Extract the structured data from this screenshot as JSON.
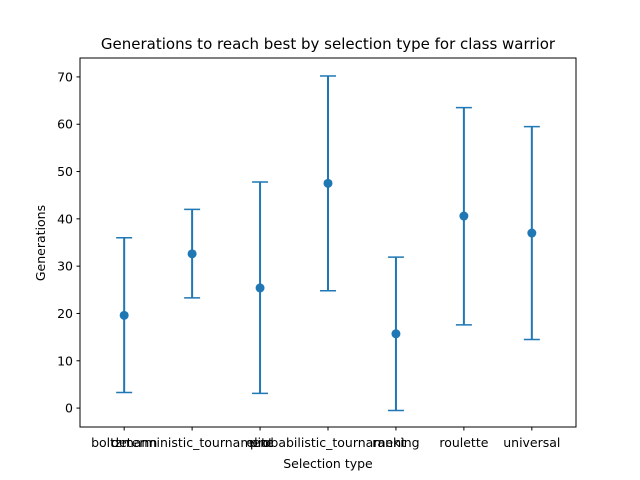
{
  "chart_data": {
    "type": "scatter",
    "title": "Generations to reach best by selection type for class warrior",
    "xlabel": "Selection type",
    "ylabel": "Generations",
    "categories": [
      "boltzmann",
      "deterministic_tournament",
      "elite",
      "probabilistic_tournament",
      "ranking",
      "roulette",
      "universal"
    ],
    "means": [
      19.6,
      32.6,
      25.4,
      47.5,
      15.7,
      40.6,
      37.0
    ],
    "error_low": [
      3.3,
      23.3,
      3.1,
      24.8,
      -0.5,
      17.6,
      14.5
    ],
    "error_high": [
      36.0,
      42.0,
      47.8,
      70.2,
      31.9,
      63.5,
      59.5
    ],
    "ylim": [
      -4,
      74
    ],
    "yticks": [
      0,
      10,
      20,
      30,
      40,
      50,
      60,
      70
    ],
    "color": "#1f77b4",
    "grid": false
  }
}
